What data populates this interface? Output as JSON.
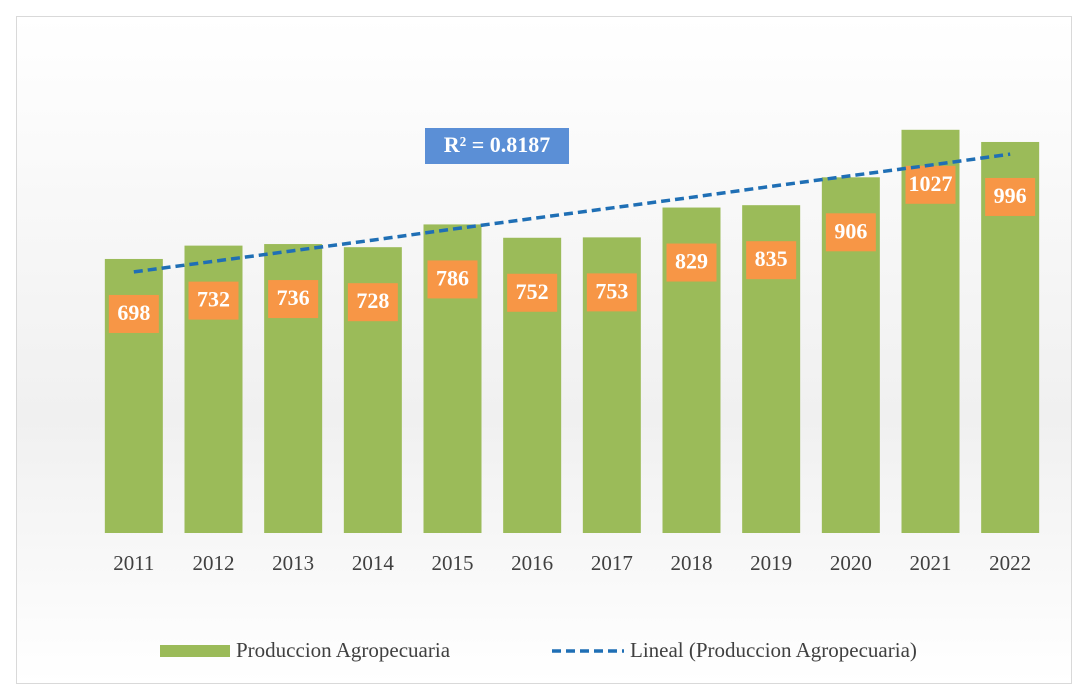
{
  "chart_data": {
    "type": "bar",
    "categories": [
      "2011",
      "2012",
      "2013",
      "2014",
      "2015",
      "2016",
      "2017",
      "2018",
      "2019",
      "2020",
      "2021",
      "2022"
    ],
    "series": [
      {
        "name": "Produccion Agropecuaria",
        "color": "#9bbb59",
        "values": [
          698,
          732,
          736,
          728,
          786,
          752,
          753,
          829,
          835,
          906,
          1027,
          996
        ]
      },
      {
        "name": "Lineal (Produccion Agropecuaria)",
        "color": "#1f6fb5",
        "type": "line",
        "dashed": true,
        "values": [
          665,
          692,
          719,
          746,
          774,
          801,
          828,
          855,
          883,
          910,
          937,
          965
        ]
      }
    ],
    "value_label_color": "#f79646",
    "annotation": "R² = 0.8187",
    "annotation_color": "#5b8fd6",
    "ylim": [
      0,
      1100
    ],
    "legend": "bottom"
  }
}
